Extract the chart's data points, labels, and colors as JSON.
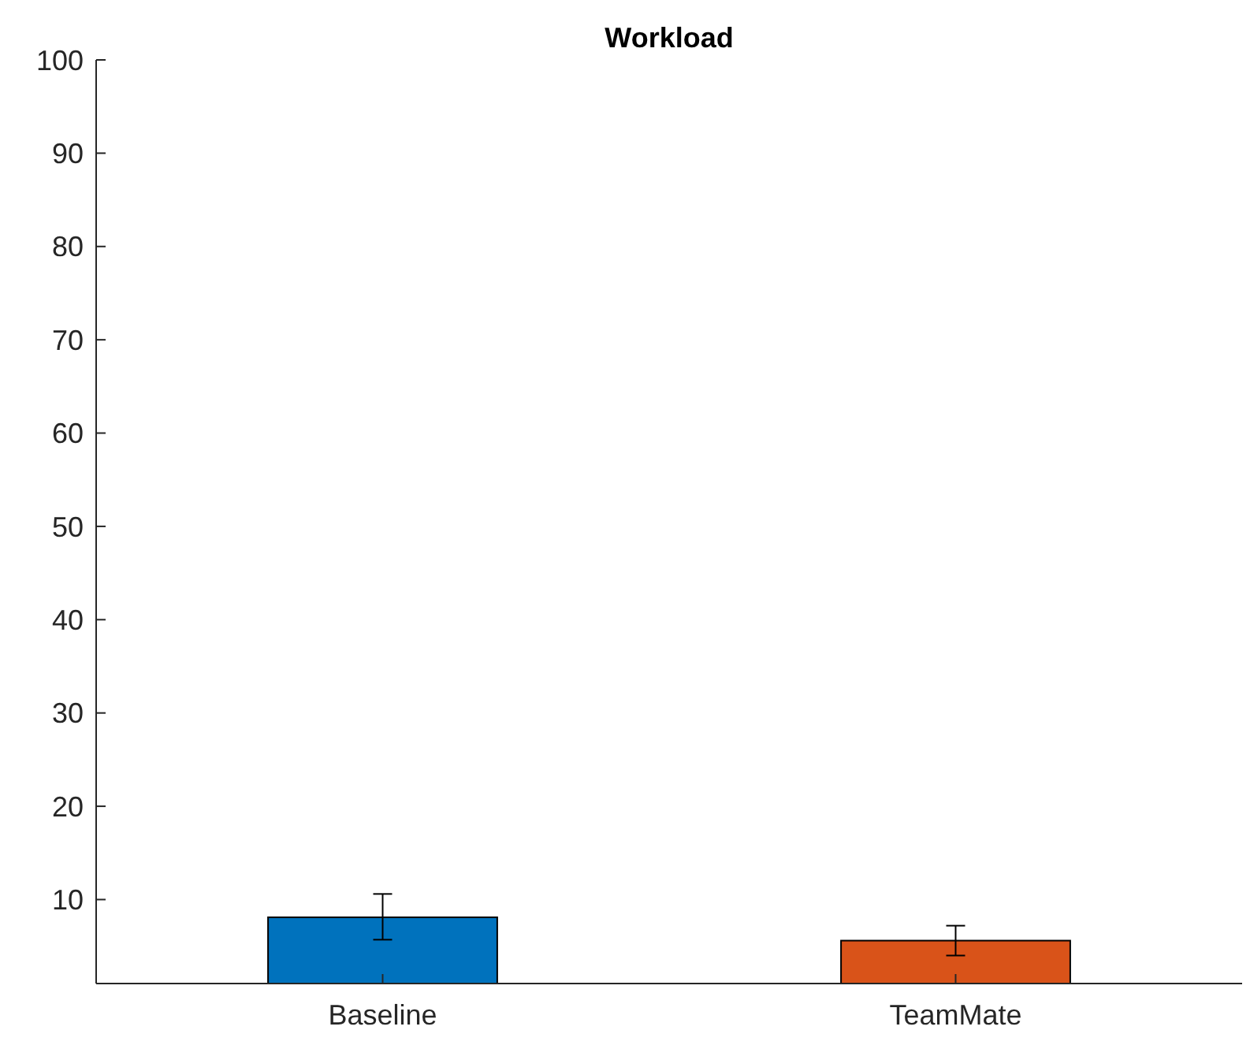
{
  "chart_data": {
    "type": "bar",
    "title": "Workload",
    "categories": [
      "Baseline",
      "TeamMate"
    ],
    "values": [
      8.1,
      5.6
    ],
    "colors": [
      "#0072bd",
      "#d95319"
    ],
    "errors": [
      [
        5.7,
        10.6
      ],
      [
        4.0,
        7.2
      ]
    ],
    "ylim": [
      1,
      100
    ],
    "yticks": [
      10,
      20,
      30,
      40,
      50,
      60,
      70,
      80,
      90,
      100
    ],
    "grid": false
  }
}
